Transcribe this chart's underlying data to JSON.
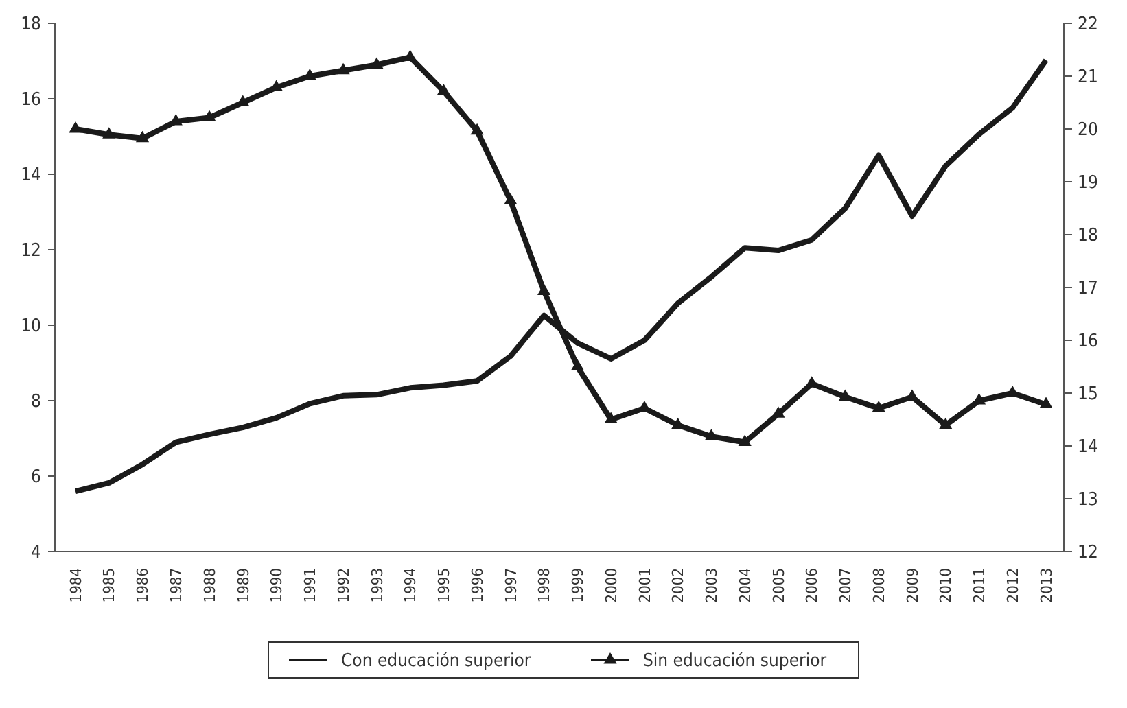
{
  "chart_data": {
    "type": "line",
    "categories": [
      "1984",
      "1985",
      "1986",
      "1987",
      "1988",
      "1989",
      "1990",
      "1991",
      "1992",
      "1993",
      "1994",
      "1995",
      "1996",
      "1997",
      "1998",
      "1999",
      "2000",
      "2001",
      "2002",
      "2003",
      "2004",
      "2005",
      "2006",
      "2007",
      "2008",
      "2009",
      "2010",
      "2011",
      "2012",
      "2013"
    ],
    "series": [
      {
        "name": "Con educación superior",
        "color": "#1a1a1a",
        "axis": "y2",
        "marker": "none",
        "values": [
          13.14,
          13.3,
          13.65,
          14.07,
          14.22,
          14.35,
          14.53,
          14.8,
          14.95,
          14.97,
          15.1,
          15.15,
          15.23,
          15.7,
          16.47,
          15.95,
          15.65,
          16.0,
          16.7,
          17.2,
          17.75,
          17.7,
          17.9,
          18.5,
          19.5,
          18.35,
          19.3,
          19.9,
          20.4,
          21.3
        ]
      },
      {
        "name": "Sin educación superior",
        "color": "#1a1a1a",
        "axis": "y",
        "marker": "triangle",
        "values": [
          15.2,
          15.05,
          14.95,
          15.4,
          15.5,
          15.9,
          16.3,
          16.6,
          16.75,
          16.9,
          17.1,
          16.2,
          15.15,
          13.3,
          10.9,
          8.9,
          7.5,
          7.8,
          7.35,
          7.05,
          6.9,
          7.65,
          8.45,
          8.1,
          7.8,
          8.1,
          7.35,
          8.0,
          8.2,
          7.9
        ]
      }
    ],
    "ylim": [
      4,
      18
    ],
    "yticks": [
      4,
      6,
      8,
      10,
      12,
      14,
      16,
      18
    ],
    "y2lim": [
      12,
      22
    ],
    "y2ticks": [
      12,
      13,
      14,
      15,
      16,
      17,
      18,
      19,
      20,
      21,
      22
    ],
    "legend": "bottom",
    "grid": false,
    "line_style": "solid"
  }
}
